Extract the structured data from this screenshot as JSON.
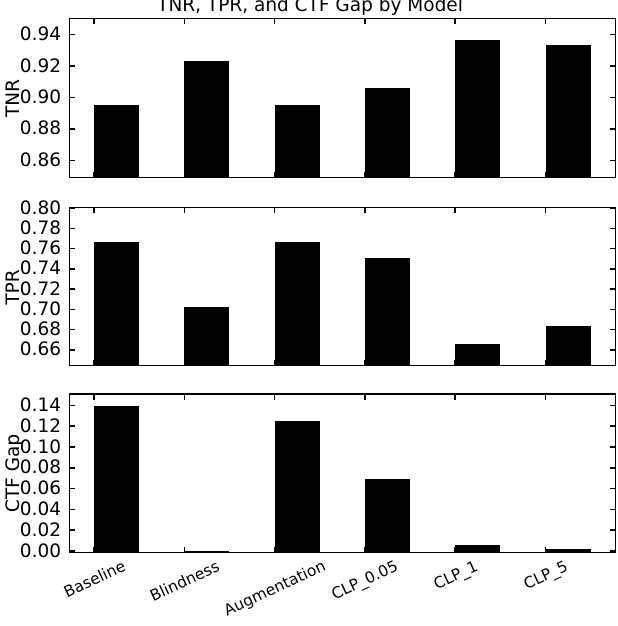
{
  "chart_data": {
    "type": "bar",
    "title": "TNR, TPR, and CTF Gap by Model",
    "categories": [
      "Baseline",
      "Blindness",
      "Augmentation",
      "CLP_0.05",
      "CLP_1",
      "CLP_5"
    ],
    "bar_color": "#000000",
    "grid": false,
    "legend": null,
    "xlabel": "",
    "subplots": [
      {
        "ylabel": "TNR",
        "ylim": [
          0.85,
          0.95
        ],
        "yticks": [
          "0.86",
          "0.88",
          "0.90",
          "0.92",
          "0.94"
        ],
        "values": [
          0.896,
          0.924,
          0.896,
          0.907,
          0.937,
          0.934
        ]
      },
      {
        "ylabel": "TPR",
        "ylim": [
          0.646,
          0.8
        ],
        "yticks": [
          "0.66",
          "0.68",
          "0.70",
          "0.72",
          "0.74",
          "0.76",
          "0.78",
          "0.80"
        ],
        "values": [
          0.767,
          0.703,
          0.767,
          0.752,
          0.667,
          0.685
        ]
      },
      {
        "ylabel": "CTF Gap",
        "ylim": [
          0.0,
          0.15
        ],
        "yticks": [
          "0.00",
          "0.02",
          "0.04",
          "0.06",
          "0.08",
          "0.10",
          "0.12",
          "0.14"
        ],
        "values": [
          0.14,
          0.0005,
          0.126,
          0.07,
          0.007,
          0.003
        ]
      }
    ]
  }
}
